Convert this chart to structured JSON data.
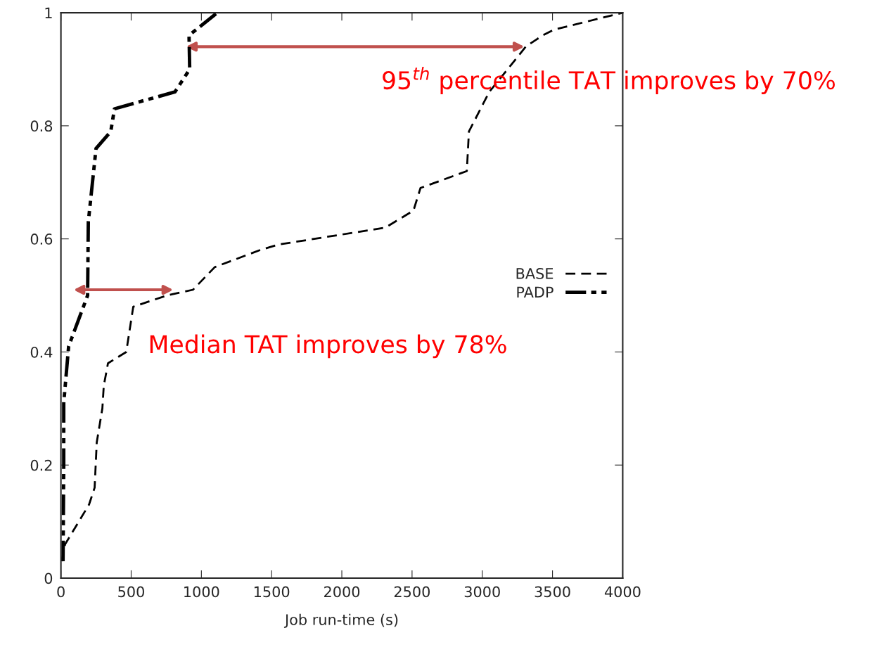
{
  "chart_data": {
    "type": "line",
    "xlabel": "Job run-time (s)",
    "xlim": [
      0,
      4000
    ],
    "xticks": [
      0,
      500,
      1000,
      1500,
      2000,
      2500,
      3000,
      3500,
      4000
    ],
    "ylim": [
      0,
      1
    ],
    "yticks": [
      0,
      0.2,
      0.4,
      0.6,
      0.8,
      1
    ],
    "grid": false,
    "legend": "right",
    "marker": "none",
    "series": [
      {
        "name": "BASE",
        "color": "#000000",
        "line_style": "dashed",
        "x": [
          5,
          30,
          200,
          240,
          255,
          295,
          305,
          335,
          465,
          515,
          755,
          940,
          1095,
          1415,
          1550,
          2310,
          2510,
          2560,
          2890,
          2905,
          3050,
          3310,
          3430,
          3510,
          4000
        ],
        "values": [
          0.03,
          0.06,
          0.13,
          0.16,
          0.24,
          0.3,
          0.34,
          0.38,
          0.4,
          0.48,
          0.5,
          0.51,
          0.55,
          0.58,
          0.59,
          0.62,
          0.65,
          0.69,
          0.72,
          0.79,
          0.86,
          0.94,
          0.96,
          0.97,
          1.0
        ]
      },
      {
        "name": "PADP",
        "color": "#000000",
        "line_style": "dashdot",
        "x": [
          15,
          20,
          20,
          55,
          190,
          195,
          250,
          355,
          381,
          812,
          917,
          912,
          1113
        ],
        "values": [
          0.03,
          0.2,
          0.31,
          0.41,
          0.5,
          0.63,
          0.76,
          0.79,
          0.83,
          0.86,
          0.9,
          0.96,
          1.0
        ]
      }
    ],
    "annotations": [
      {
        "text": "95$^{th}$ percentile TAT improves by 70%",
        "x": 3300,
        "y": 0.94
      },
      {
        "text": "Median TAT improves by 78%",
        "x": 800,
        "y": 0.51
      }
    ]
  }
}
